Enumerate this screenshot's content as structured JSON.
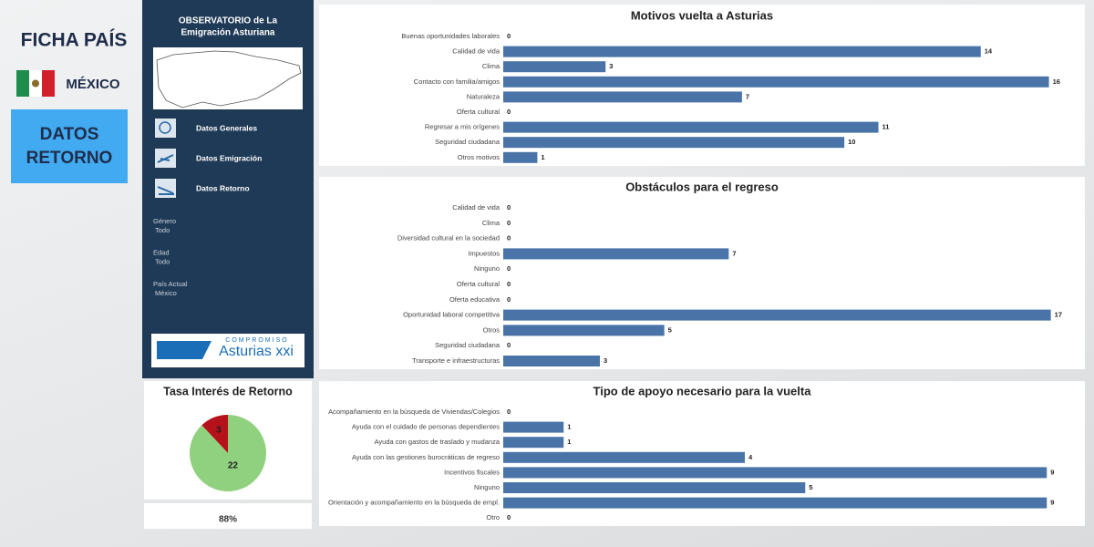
{
  "header": {
    "title": "FICHA PAÍS",
    "country": "MÉXICO",
    "button": "DATOS RETORNO"
  },
  "sidebar": {
    "title_lines": [
      "OBSERVATORIO de La",
      "Emigración Asturiana"
    ],
    "nav": [
      "Datos Generales",
      "Datos Emigración",
      "Datos Retorno"
    ],
    "filters": [
      {
        "label": "Género",
        "value": "Todo"
      },
      {
        "label": "Edad",
        "value": "Todo"
      },
      {
        "label": "País Actual",
        "value": "México"
      }
    ],
    "logo": {
      "top": "COMPROMISO",
      "name": "Asturias xxi"
    }
  },
  "rate": "88%",
  "chart_data": [
    {
      "type": "bar",
      "title": "Motivos vuelta a Asturias",
      "color": "#4a74a8",
      "xlim": [
        0,
        17
      ],
      "categories": [
        "Buenas oportunidades laborales",
        "Calidad de vida",
        "Clima",
        "Contacto con familia/amigos",
        "Naturaleza",
        "Oferta cultural",
        "Regresar a mis orígenes",
        "Seguridad ciudadana",
        "Otros motivos"
      ],
      "values": [
        0,
        14,
        3,
        16,
        7,
        0,
        11,
        10,
        1
      ]
    },
    {
      "type": "bar",
      "title": "Obstáculos para el regreso",
      "color": "#4a74a8",
      "xlim": [
        0,
        18
      ],
      "categories": [
        "Calidad de vida",
        "Clima",
        "Diversidad cultural en la sociedad",
        "Impuestos",
        "Ninguno",
        "Oferta cultural",
        "Oferta educativa",
        "Oportunidad laboral competitiva",
        "Otros",
        "Seguridad ciudadana",
        "Transporte e infraestructuras"
      ],
      "values": [
        0,
        0,
        0,
        7,
        0,
        0,
        0,
        17,
        5,
        0,
        3
      ]
    },
    {
      "type": "bar",
      "title": "Tipo de apoyo necesario para la vuelta",
      "color": "#4a74a8",
      "xlim": [
        0,
        9.6
      ],
      "categories": [
        "Acompañamiento en la búsqueda de Viviendas/Colegios",
        "Ayuda con el cuidado de personas dependientes",
        "Ayuda con gastos de traslado y mudanza",
        "Ayuda con las gestiones burocráticas de regreso",
        "Incentivos fiscales",
        "Ninguno",
        "Orientación y acompañamiento en la búsqueda de empl.",
        "Otro"
      ],
      "values": [
        0,
        1,
        1,
        4,
        9,
        5,
        9,
        0
      ]
    },
    {
      "type": "pie",
      "title": "Tasa Interés de Retorno",
      "series": [
        {
          "name": null,
          "color": "#b5121b",
          "values": [
            3
          ]
        },
        {
          "name": null,
          "color": "#8fd17e",
          "values": [
            22
          ]
        }
      ]
    }
  ]
}
